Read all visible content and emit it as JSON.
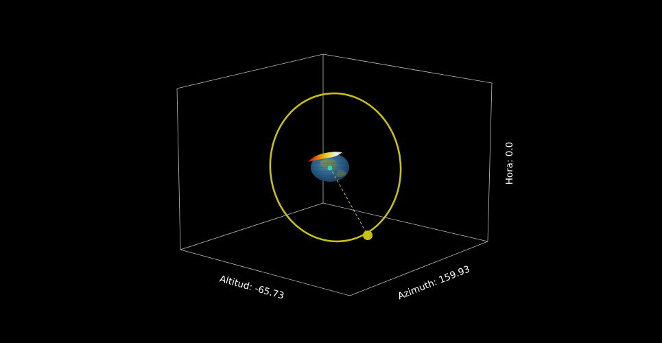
{
  "labels": {
    "altitude": "Altitud: -65.73",
    "azimuth": "Azimuth: 159.93",
    "hour": "Hora: 0.0"
  },
  "colors": {
    "background": "#000000",
    "box_edges": "#bfbfbf",
    "orbit": "#c8c012",
    "sun": "#c8c012",
    "observer": "#2fd6b4",
    "earth_ocean": "#2a5d86",
    "earth_land": "#7d8f57",
    "earth_ice": "#e9e9e0",
    "earth_red": "#d21818"
  },
  "icons": {
    "sun": "filled-circle",
    "observer": "filled-circle"
  }
}
